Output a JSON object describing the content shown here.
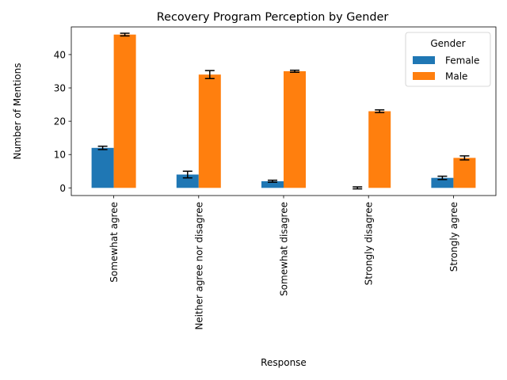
{
  "chart_data": {
    "type": "bar",
    "title": "Recovery  Program Perception by Gender",
    "xlabel": "Response",
    "ylabel": "Number of Mentions",
    "categories": [
      "Somewhat agree",
      "Neither agree nor disagree",
      "Somewhat disagree",
      "Strongly disagree",
      "Strongly agree"
    ],
    "series": [
      {
        "name": "Female",
        "color": "#1f77b4",
        "values": [
          12,
          4,
          2,
          0,
          3
        ],
        "errors": [
          0.5,
          1.0,
          0.3,
          0.3,
          0.5
        ]
      },
      {
        "name": "Male",
        "color": "#ff7f0e",
        "values": [
          46,
          34,
          35,
          23,
          9
        ],
        "errors": [
          0.4,
          1.2,
          0.3,
          0.4,
          0.6
        ]
      }
    ],
    "ylim": [
      -2.3,
      48.3
    ],
    "yticks": [
      0,
      10,
      20,
      30,
      40
    ],
    "legend": {
      "title": "Gender",
      "placement": "top-right"
    },
    "grid": false
  }
}
